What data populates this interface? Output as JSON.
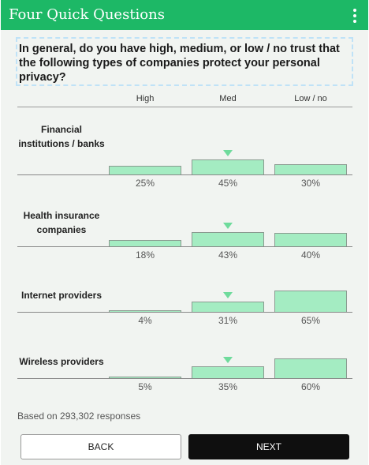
{
  "header": {
    "title": "Four Quick Questions",
    "menu_icon": "more-vert-icon"
  },
  "question": "In general, do you have high, medium, or low / no trust that the following types of companies protect your personal privacy?",
  "columns": [
    "High",
    "Med",
    "Low / no"
  ],
  "rows": [
    {
      "label": "Financial institutions / banks",
      "values": [
        25,
        45,
        30
      ],
      "pct_labels": [
        "25%",
        "45%",
        "30%"
      ],
      "marker_col": 1
    },
    {
      "label": "Health insurance companies",
      "values": [
        18,
        43,
        40
      ],
      "pct_labels": [
        "18%",
        "43%",
        "40%"
      ],
      "marker_col": 1
    },
    {
      "label": "Internet providers",
      "values": [
        4,
        31,
        65
      ],
      "pct_labels": [
        "4%",
        "31%",
        "65%"
      ],
      "marker_col": 1
    },
    {
      "label": "Wireless providers",
      "values": [
        5,
        35,
        60
      ],
      "pct_labels": [
        "5%",
        "35%",
        "60%"
      ],
      "marker_col": 1
    }
  ],
  "footer_note": "Based on 293,302 responses",
  "buttons": {
    "back": "BACK",
    "next": "NEXT"
  },
  "colors": {
    "appbar": "#1db866",
    "bar_fill": "#a4ecc2",
    "marker": "#6fdb9c",
    "next_bg": "#0f0f0f"
  }
}
